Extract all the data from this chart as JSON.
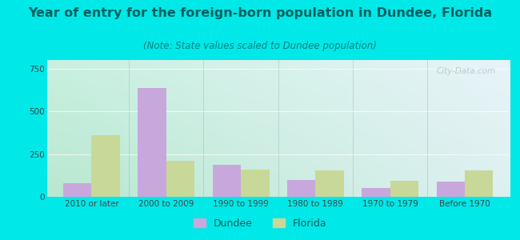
{
  "title": "Year of entry for the foreign-born population in Dundee, Florida",
  "subtitle": "(Note: State values scaled to Dundee population)",
  "categories": [
    "2010 or later",
    "2000 to 2009",
    "1990 to 1999",
    "1980 to 1989",
    "1970 to 1979",
    "Before 1970"
  ],
  "dundee_values": [
    80,
    635,
    185,
    100,
    50,
    90
  ],
  "florida_values": [
    360,
    210,
    160,
    155,
    95,
    155
  ],
  "dundee_color": "#c8a8dc",
  "florida_color": "#c8d898",
  "bg_outer": "#00e8e8",
  "bg_plot_topleft": "#c8f0e0",
  "bg_plot_topright": "#e8f4f8",
  "bg_plot_bottomleft": "#b8e8d0",
  "bg_plot_bottomright": "#ddf0f0",
  "ylim": [
    0,
    800
  ],
  "yticks": [
    0,
    250,
    500,
    750
  ],
  "title_color": "#006060",
  "subtitle_color": "#008080",
  "tick_color": "#444444",
  "title_fontsize": 11.5,
  "subtitle_fontsize": 8.5,
  "tick_fontsize": 7.5,
  "legend_fontsize": 9,
  "bar_width": 0.38,
  "watermark": "City-Data.com"
}
